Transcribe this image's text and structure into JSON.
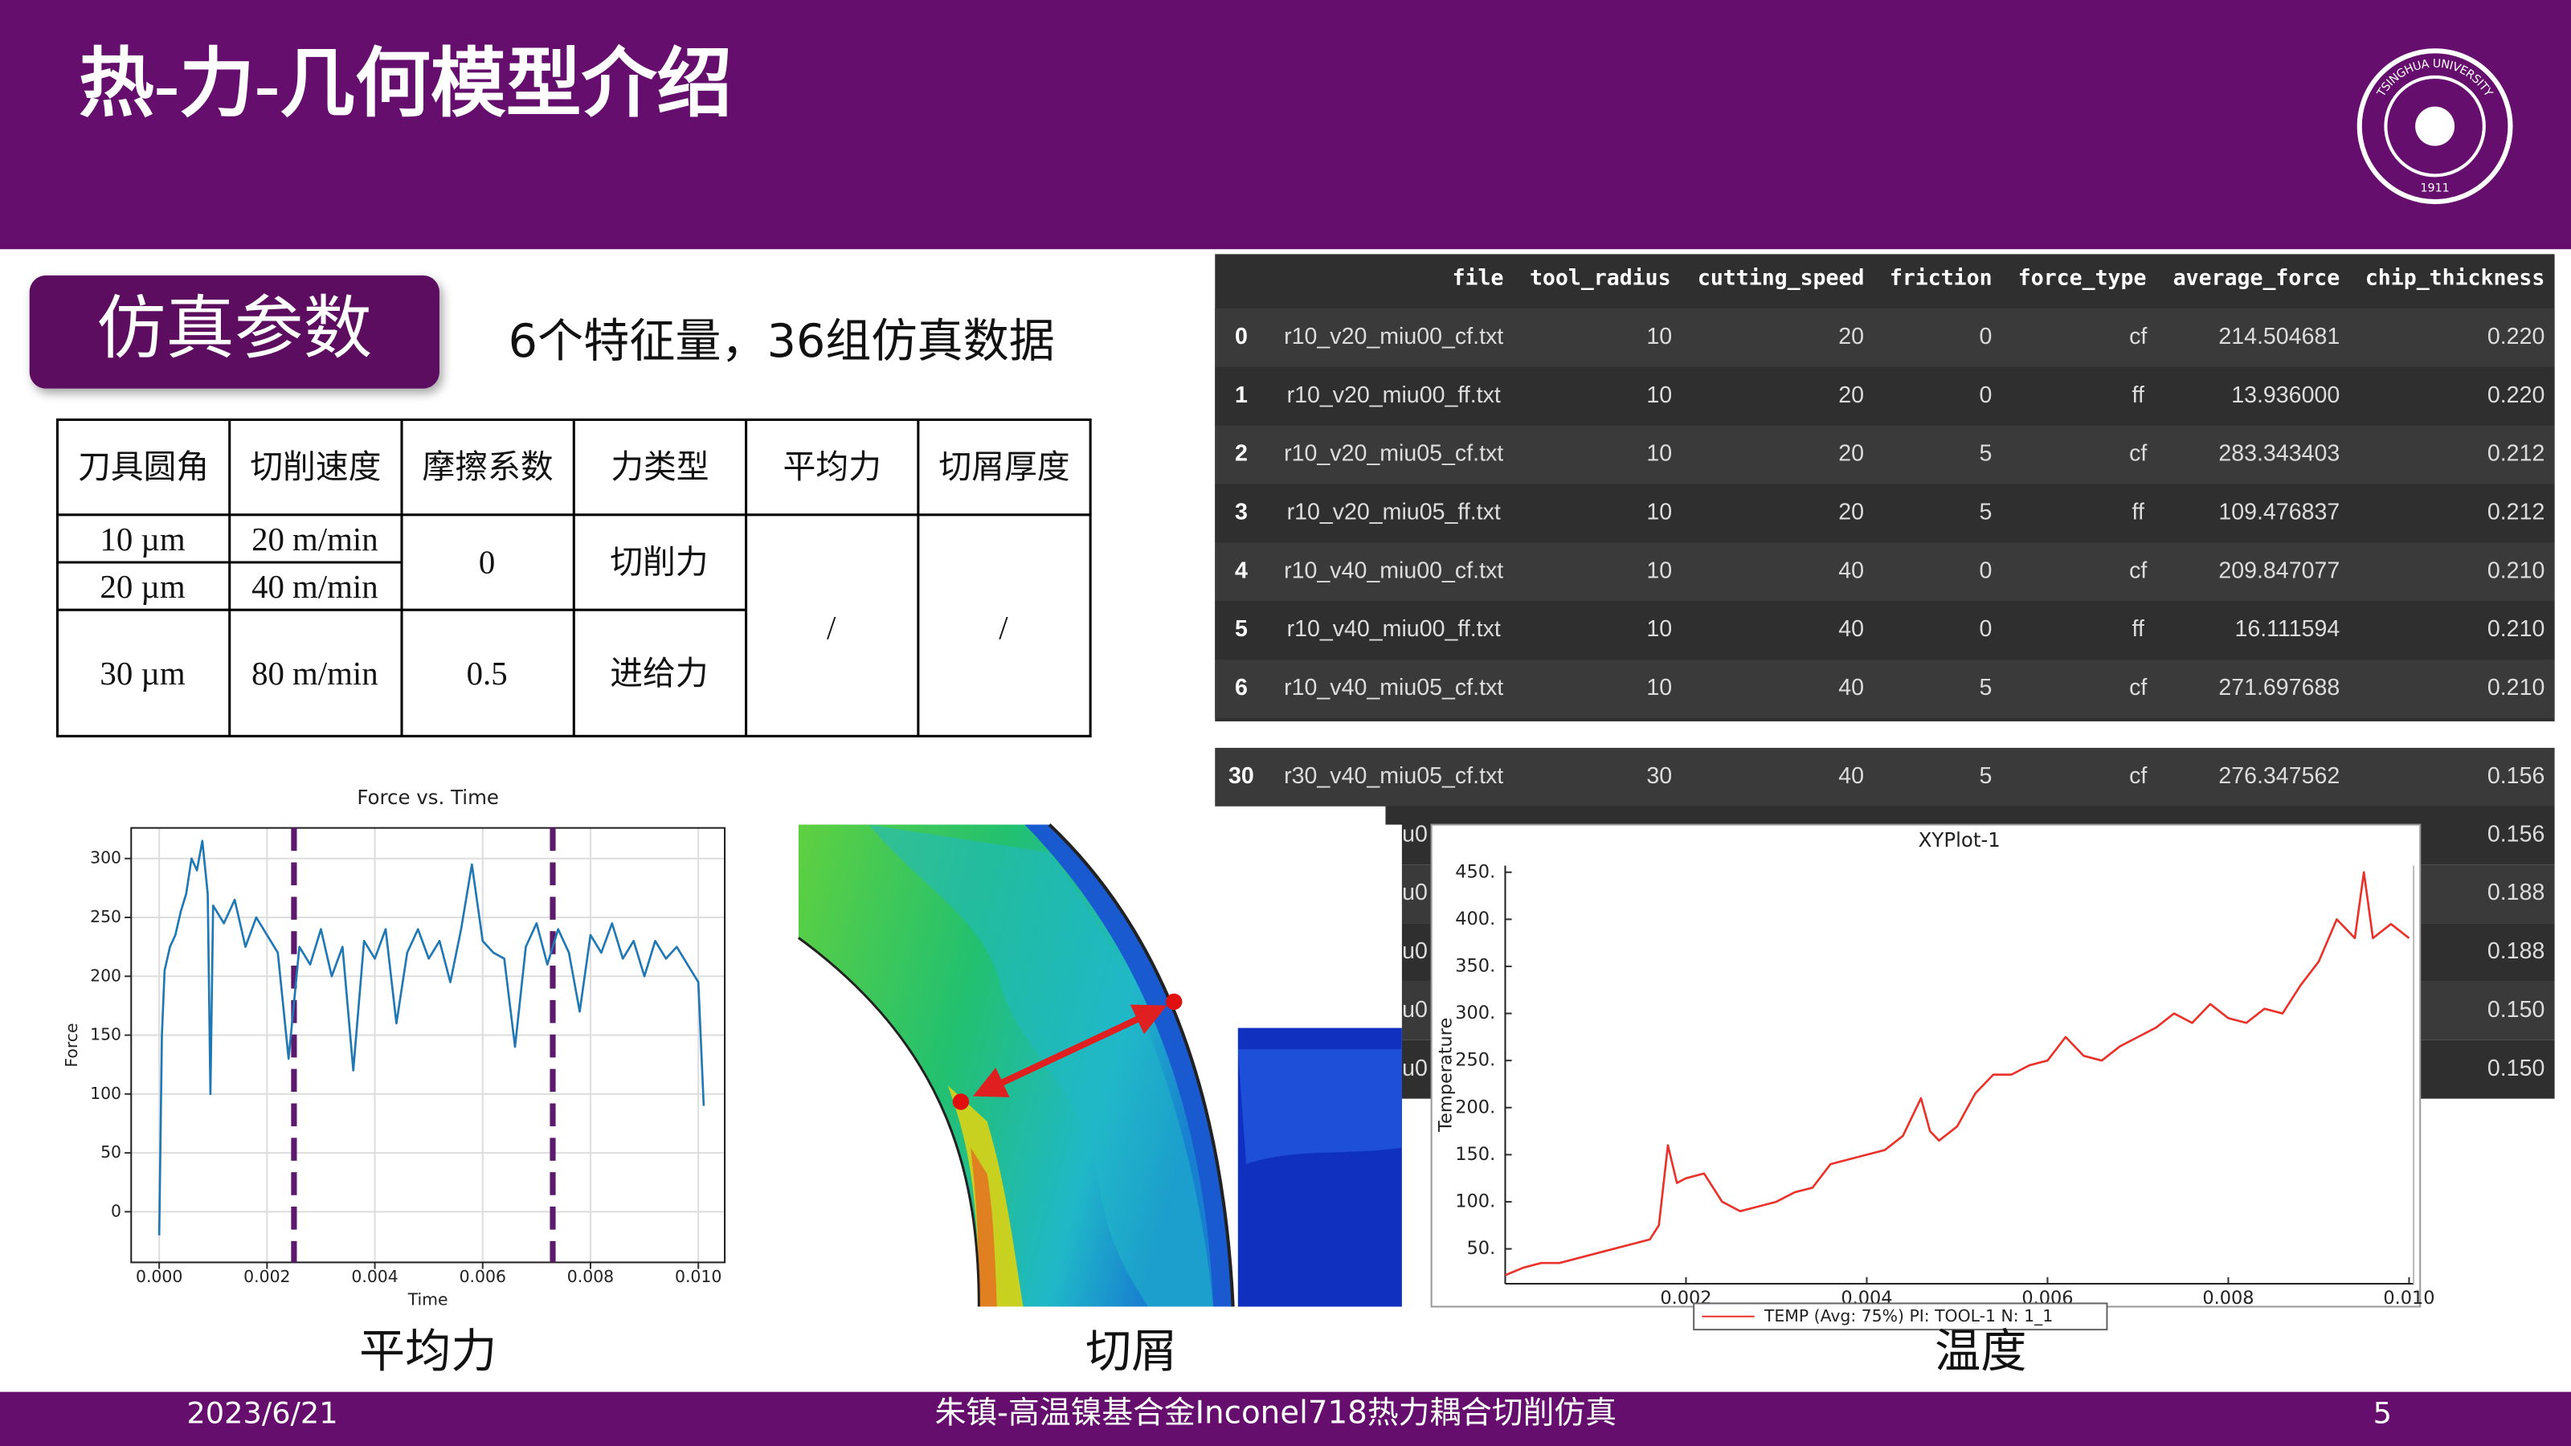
{
  "header": {
    "title": "热-力-几何模型介绍"
  },
  "logo": {
    "ring_text": "TSINGHUA UNIVERSITY",
    "year": "1911"
  },
  "section": {
    "label": "仿真参数",
    "summary": "6个特征量，36组仿真数据"
  },
  "param_table": {
    "columns": [
      "刀具圆角",
      "切削速度",
      "摩擦系数",
      "力类型",
      "平均力",
      "切屑厚度"
    ],
    "cells": {
      "radius": [
        "10 µm",
        "20 µm",
        "30 µm"
      ],
      "speed": [
        "20 m/min",
        "40 m/min",
        "80 m/min"
      ],
      "friction": [
        "0",
        "0.5"
      ],
      "force_type": [
        "切削力",
        "进给力"
      ],
      "average_force": "/",
      "chip_thickness": "/"
    }
  },
  "df_table": {
    "columns": [
      "file",
      "tool_radius",
      "cutting_speed",
      "friction",
      "force_type",
      "average_force",
      "chip_thickness"
    ],
    "rows": [
      [
        "0",
        "r10_v20_miu00_cf.txt",
        "10",
        "20",
        "0",
        "cf",
        "214.504681",
        "0.220"
      ],
      [
        "1",
        "r10_v20_miu00_ff.txt",
        "10",
        "20",
        "0",
        "ff",
        "13.936000",
        "0.220"
      ],
      [
        "2",
        "r10_v20_miu05_cf.txt",
        "10",
        "20",
        "5",
        "cf",
        "283.343403",
        "0.212"
      ],
      [
        "3",
        "r10_v20_miu05_ff.txt",
        "10",
        "20",
        "5",
        "ff",
        "109.476837",
        "0.212"
      ],
      [
        "4",
        "r10_v40_miu00_cf.txt",
        "10",
        "40",
        "0",
        "cf",
        "209.847077",
        "0.210"
      ],
      [
        "5",
        "r10_v40_miu00_ff.txt",
        "10",
        "40",
        "0",
        "ff",
        "16.111594",
        "0.210"
      ],
      [
        "6",
        "r10_v40_miu05_cf.txt",
        "10",
        "40",
        "5",
        "cf",
        "271.697688",
        "0.210"
      ]
    ],
    "extra_rows": [
      [
        "30",
        "r30_v40_miu05_cf.txt",
        "30",
        "40",
        "5",
        "cf",
        "276.347562",
        "0.156"
      ]
    ],
    "partial_rows": [
      [
        "iu0",
        "0.156"
      ],
      [
        "iu0",
        "0.188"
      ],
      [
        "iu0",
        "0.188"
      ],
      [
        "iu0",
        "0.150"
      ],
      [
        "iu0",
        "0.150"
      ]
    ]
  },
  "chart_data": [
    {
      "type": "line",
      "title": "Force vs. Time",
      "xlabel": "Time",
      "ylabel": "Force",
      "caption": "平均力",
      "grid": true,
      "xlim": [
        -0.00052,
        0.01049
      ],
      "ylim": [
        -43,
        326
      ],
      "xticks": [
        {
          "value": 0,
          "label": "0.000"
        },
        0.002,
        0.004,
        0.006,
        0.008,
        {
          "value": 0.01,
          "label": "0.010"
        }
      ],
      "yticks": [
        0,
        50,
        100,
        150,
        200,
        250,
        300
      ],
      "x": [
        0,
        5e-05,
        0.0001,
        0.0002,
        0.0003,
        0.0004,
        0.0005,
        0.0006,
        0.0007,
        0.0008,
        0.0009,
        0.00095,
        0.001,
        0.0012,
        0.0014,
        0.0016,
        0.0018,
        0.002,
        0.0022,
        0.0024,
        0.0026,
        0.0028,
        0.003,
        0.0032,
        0.0034,
        0.0036,
        0.0038,
        0.004,
        0.0042,
        0.0044,
        0.0046,
        0.0048,
        0.005,
        0.0052,
        0.0054,
        0.0056,
        0.0058,
        0.006,
        0.0062,
        0.0064,
        0.0066,
        0.0068,
        0.007,
        0.0072,
        0.0074,
        0.0076,
        0.0078,
        0.008,
        0.0082,
        0.0084,
        0.0086,
        0.0088,
        0.009,
        0.0092,
        0.0094,
        0.0096,
        0.0098,
        0.01,
        0.0101
      ],
      "series": [
        {
          "color": "#1f77b4",
          "values": [
            -20,
            150,
            205,
            225,
            235,
            255,
            270,
            300,
            290,
            315,
            270,
            100,
            260,
            245,
            265,
            225,
            250,
            235,
            220,
            130,
            225,
            210,
            240,
            200,
            225,
            120,
            230,
            215,
            240,
            160,
            220,
            240,
            215,
            230,
            195,
            240,
            295,
            230,
            220,
            215,
            140,
            225,
            245,
            210,
            240,
            220,
            170,
            235,
            220,
            245,
            215,
            230,
            200,
            230,
            215,
            225,
            210,
            195,
            90
          ]
        }
      ],
      "vlines": {
        "color": "#5c1a6e",
        "values": [
          0.0025,
          0.0073
        ]
      }
    },
    {
      "type": "line",
      "title": "XYPlot-1",
      "xlabel": "Time",
      "ylabel": "Temperature",
      "caption": "温度",
      "grid": false,
      "xlim": [
        0,
        0.01005
      ],
      "ylim": [
        13,
        457
      ],
      "xticks": [
        0.002,
        0.004,
        0.006,
        0.008,
        {
          "value": 0.01,
          "label": "0.010"
        }
      ],
      "yticks": [
        {
          "value": 50,
          "label": "50."
        },
        {
          "value": 100,
          "label": "100."
        },
        {
          "value": 150,
          "label": "150."
        },
        {
          "value": 200,
          "label": "200."
        },
        {
          "value": 250,
          "label": "250."
        },
        {
          "value": 300,
          "label": "300."
        },
        {
          "value": 350,
          "label": "350."
        },
        {
          "value": 400,
          "label": "400."
        },
        {
          "value": 450,
          "label": "450."
        }
      ],
      "x": [
        0,
        0.0002,
        0.0004,
        0.0006,
        0.0008,
        0.001,
        0.0012,
        0.0014,
        0.0016,
        0.0017,
        0.0018,
        0.0019,
        0.002,
        0.0022,
        0.0024,
        0.0026,
        0.0028,
        0.003,
        0.0032,
        0.0034,
        0.0036,
        0.0038,
        0.004,
        0.0042,
        0.0044,
        0.0046,
        0.0047,
        0.0048,
        0.005,
        0.0052,
        0.0054,
        0.0056,
        0.0058,
        0.006,
        0.0062,
        0.0064,
        0.0066,
        0.0068,
        0.007,
        0.0072,
        0.0074,
        0.0076,
        0.0078,
        0.008,
        0.0082,
        0.0084,
        0.0086,
        0.0088,
        0.009,
        0.0092,
        0.0094,
        0.0095,
        0.0096,
        0.0098,
        0.01
      ],
      "series": [
        {
          "name": "TEMP (Avg: 75%) PI: TOOL-1 N: 1_1",
          "color": "#e8322a",
          "values": [
            22,
            30,
            35,
            35,
            40,
            45,
            50,
            55,
            60,
            75,
            160,
            120,
            125,
            130,
            100,
            90,
            95,
            100,
            110,
            115,
            140,
            145,
            150,
            155,
            170,
            210,
            175,
            165,
            180,
            215,
            235,
            235,
            245,
            250,
            275,
            255,
            250,
            265,
            275,
            285,
            300,
            290,
            310,
            295,
            290,
            305,
            300,
            330,
            355,
            400,
            380,
            450,
            380,
            395,
            380
          ]
        }
      ]
    }
  ],
  "chip_image": {
    "caption": "切屑"
  },
  "footer": {
    "date": "2023/6/21",
    "center": "朱镇-高温镍基合金Inconel718热力耦合切削仿真",
    "page": "5"
  }
}
